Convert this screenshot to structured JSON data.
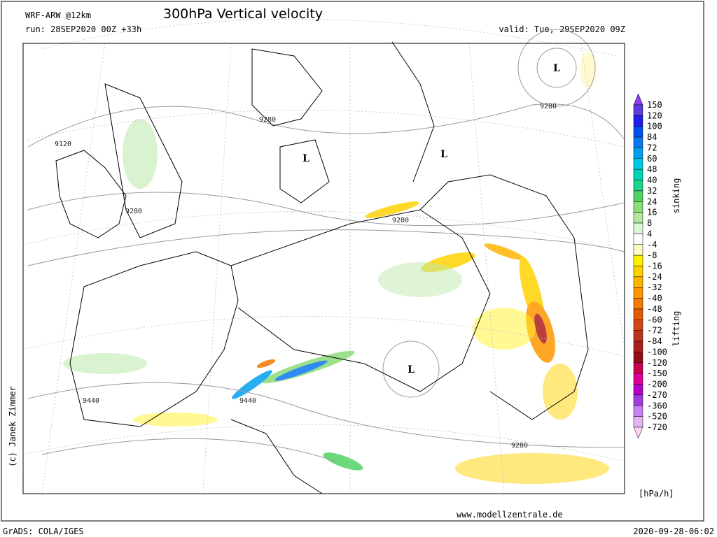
{
  "header": {
    "model": "WRF-ARW @12km",
    "title": "300hPa Vertical velocity",
    "run": "run: 28SEP2020 00Z +33h",
    "valid": "valid: Tue, 29SEP2020 09Z"
  },
  "map": {
    "lows": [
      "L",
      "L",
      "L",
      "L"
    ],
    "contour_labels": [
      "9280",
      "9120",
      "9280",
      "9280",
      "9280",
      "9440",
      "9440",
      "9280"
    ]
  },
  "colorbar": {
    "labels": [
      "150",
      "120",
      "100",
      "84",
      "72",
      "60",
      "48",
      "40",
      "32",
      "24",
      "16",
      "8",
      "4",
      "-4",
      "-8",
      "-16",
      "-24",
      "-32",
      "-40",
      "-48",
      "-60",
      "-72",
      "-84",
      "-100",
      "-120",
      "-150",
      "-200",
      "-270",
      "-360",
      "-520",
      "-720"
    ],
    "colors": [
      "#8c3cf0",
      "#5a3cdc",
      "#1e1ee6",
      "#0050f0",
      "#0a78f0",
      "#00a0f0",
      "#00c8e6",
      "#00d2b4",
      "#1ed28c",
      "#50d264",
      "#8cdc78",
      "#b4e6a0",
      "#dcf5d2",
      "#ffffff",
      "#fffac8",
      "#fff000",
      "#ffd200",
      "#ffb400",
      "#ff9600",
      "#f57800",
      "#e65a00",
      "#d24614",
      "#be321e",
      "#aa1e1e",
      "#960a14",
      "#c80050",
      "#dc0096",
      "#b400c8",
      "#a03cdc",
      "#c882f0",
      "#e6b4f5",
      "#fad2fa"
    ],
    "sinking": "sinking",
    "lifting": "lifting",
    "unit": "[hPa/h]"
  },
  "footer": {
    "copyright": "(c) Janek Zimmer",
    "website": "www.modellzentrale.de",
    "software": "GrADS: COLA/IGES",
    "timestamp": "2020-09-28-06:02"
  }
}
